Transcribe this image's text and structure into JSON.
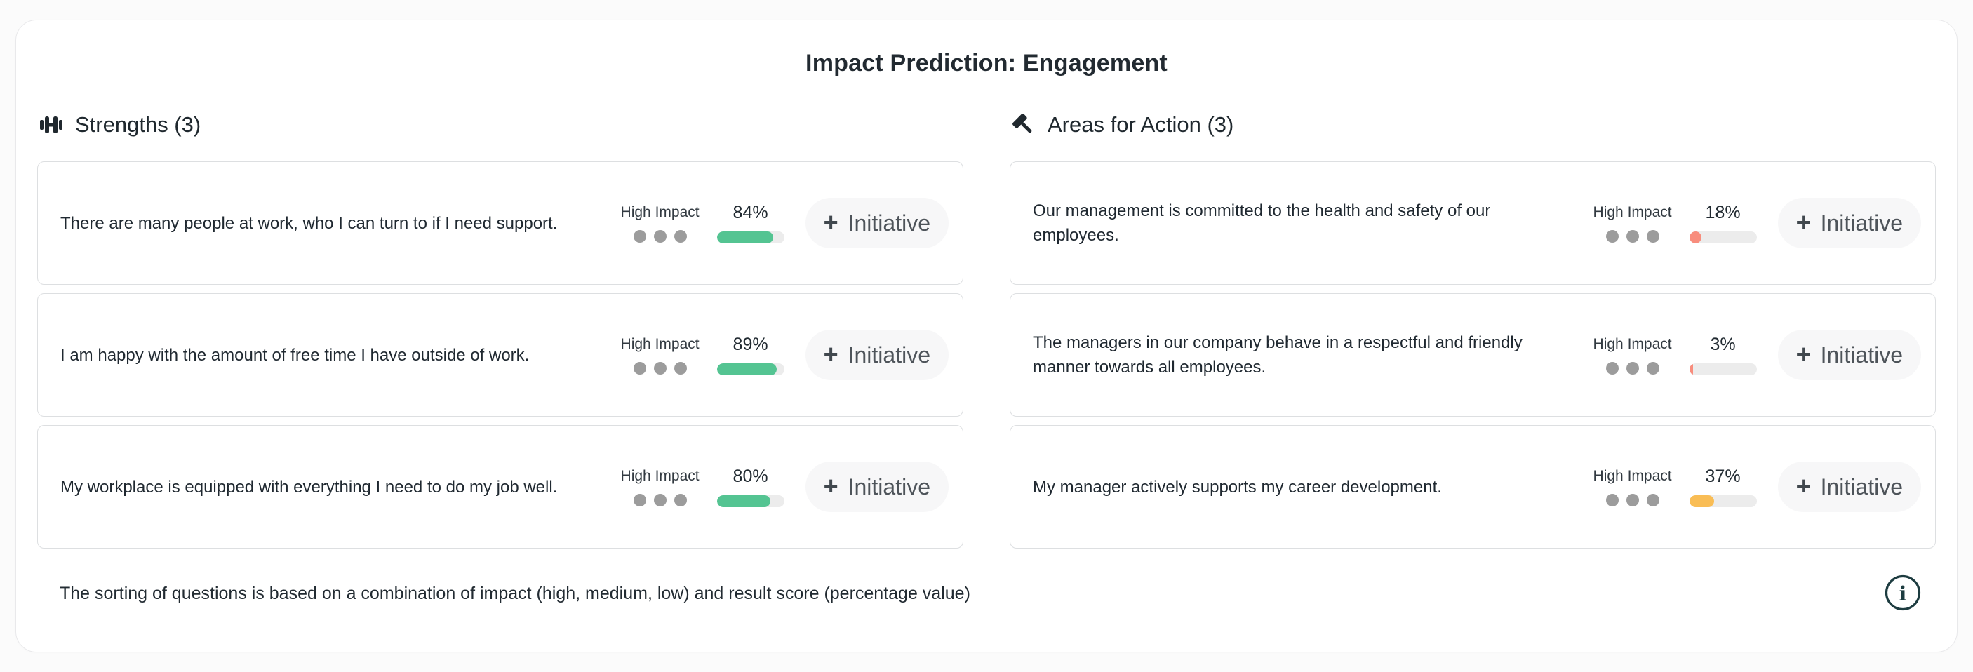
{
  "page": {
    "title": "Impact Prediction: Engagement"
  },
  "buttons": {
    "initiative_label": "Initiative",
    "plus_glyph": "+"
  },
  "footer": {
    "note": "The sorting of questions is based on a combination of impact (high, medium, low) and result score (percentage value)"
  },
  "colors": {
    "positive": "#54c492",
    "negative": "#f88d7d",
    "warning": "#f9bd55",
    "bar_track": "#ececec",
    "impact_dot": "#9c9c9c",
    "button_bg": "#f7f7f8",
    "info_icon": "#1d3c40"
  },
  "columns": [
    {
      "header": "Strengths (3)",
      "icon": "dumbbell-icon",
      "cards": [
        {
          "question": "There are many people at work, who I can turn to if I need support.",
          "impact_label": "High Impact",
          "impact_dots": 3,
          "score_label": "84%",
          "score_pct": 84,
          "bar_color": "#54c492"
        },
        {
          "question": "I am happy with the amount of free time I have outside of work.",
          "impact_label": "High Impact",
          "impact_dots": 3,
          "score_label": "89%",
          "score_pct": 89,
          "bar_color": "#54c492"
        },
        {
          "question": "My workplace is equipped with everything I need to do my job well.",
          "impact_label": "High Impact",
          "impact_dots": 3,
          "score_label": "80%",
          "score_pct": 80,
          "bar_color": "#54c492"
        }
      ]
    },
    {
      "header": "Areas for Action (3)",
      "icon": "hammer-icon",
      "cards": [
        {
          "question": "Our management is committed to the health and safety of our employees.",
          "impact_label": "High Impact",
          "impact_dots": 3,
          "score_label": "18%",
          "score_pct": 18,
          "bar_color": "#f88d7d"
        },
        {
          "question": "The managers in our company behave in a respectful and friendly manner towards all employees.",
          "impact_label": "High Impact",
          "impact_dots": 3,
          "score_label": "3%",
          "score_pct": 3,
          "bar_color": "#f88d7d"
        },
        {
          "question": "My manager actively supports my career development.",
          "impact_label": "High Impact",
          "impact_dots": 3,
          "score_label": "37%",
          "score_pct": 37,
          "bar_color": "#f9bd55"
        }
      ]
    }
  ]
}
